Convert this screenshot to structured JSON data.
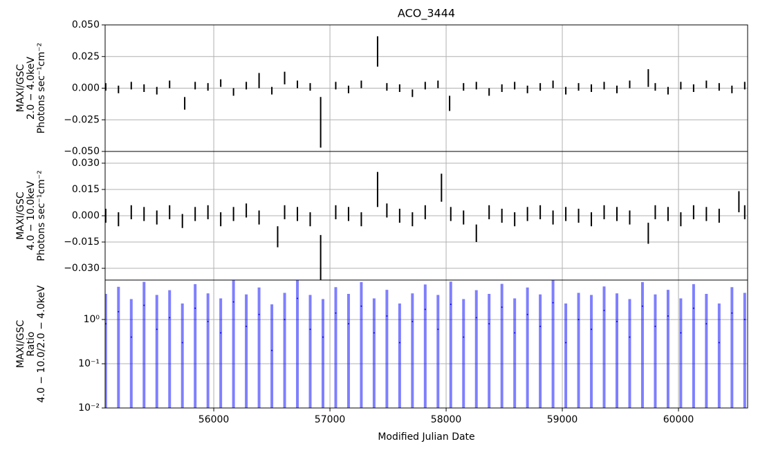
{
  "chart_data": [
    {
      "type": "errorbar",
      "title": "ACO_3444",
      "ylabel": [
        "MAXI/GSC",
        "2.0 − 4.0keV",
        "Photons sec⁻¹cm⁻²"
      ],
      "x": [
        55070,
        55180,
        55290,
        55400,
        55510,
        55620,
        55750,
        55840,
        55950,
        56060,
        56170,
        56280,
        56390,
        56500,
        56610,
        56720,
        56830,
        56920,
        57050,
        57160,
        57270,
        57410,
        57490,
        57600,
        57710,
        57820,
        57930,
        58030,
        58150,
        58260,
        58370,
        58480,
        58590,
        58700,
        58810,
        58920,
        59030,
        59140,
        59250,
        59360,
        59470,
        59580,
        59740,
        59800,
        59910,
        60020,
        60130,
        60240,
        60350,
        60460,
        60570
      ],
      "values": [
        0.001,
        -0.001,
        0.002,
        0.0,
        -0.002,
        0.003,
        -0.012,
        0.002,
        0.001,
        0.004,
        -0.003,
        0.002,
        0.006,
        -0.002,
        0.008,
        0.003,
        0.001,
        -0.027,
        0.002,
        -0.001,
        0.003,
        0.029,
        0.001,
        0.0,
        -0.004,
        0.002,
        0.003,
        -0.012,
        0.001,
        0.002,
        -0.003,
        0.0,
        0.002,
        -0.001,
        0.001,
        0.003,
        -0.002,
        0.001,
        0.0,
        0.002,
        -0.001,
        0.003,
        0.008,
        0.001,
        -0.002,
        0.002,
        0.0,
        0.003,
        0.001,
        -0.001,
        0.002
      ],
      "errors": [
        0.003,
        0.003,
        0.003,
        0.003,
        0.003,
        0.003,
        0.005,
        0.003,
        0.003,
        0.003,
        0.003,
        0.003,
        0.006,
        0.003,
        0.005,
        0.003,
        0.003,
        0.02,
        0.003,
        0.003,
        0.003,
        0.012,
        0.003,
        0.003,
        0.003,
        0.003,
        0.003,
        0.006,
        0.003,
        0.003,
        0.003,
        0.003,
        0.003,
        0.003,
        0.003,
        0.003,
        0.003,
        0.003,
        0.003,
        0.003,
        0.003,
        0.003,
        0.007,
        0.003,
        0.003,
        0.003,
        0.003,
        0.003,
        0.003,
        0.003,
        0.003
      ],
      "color": "#000000",
      "grid": true,
      "xlim": [
        55065,
        60595
      ],
      "xticks": [
        56000,
        57000,
        58000,
        59000,
        60000
      ],
      "ylim": [
        -0.05,
        0.05
      ],
      "yticks": [
        {
          "value": -0.05,
          "label": "−0.050"
        },
        {
          "value": -0.025,
          "label": "−0.025"
        },
        {
          "value": 0,
          "label": "0.000"
        },
        {
          "value": 0.025,
          "label": "0.025"
        },
        {
          "value": 0.05,
          "label": "0.050"
        }
      ]
    },
    {
      "type": "errorbar",
      "ylabel": [
        "MAXI/GSC",
        "4.0 − 10.0keV",
        "Photons sec⁻¹cm⁻²"
      ],
      "x": [
        55070,
        55180,
        55290,
        55400,
        55510,
        55620,
        55730,
        55840,
        55950,
        56060,
        56170,
        56280,
        56390,
        56550,
        56610,
        56720,
        56830,
        56920,
        57050,
        57160,
        57270,
        57410,
        57490,
        57600,
        57710,
        57820,
        57960,
        58040,
        58150,
        58260,
        58370,
        58480,
        58590,
        58700,
        58810,
        58920,
        59030,
        59140,
        59250,
        59360,
        59470,
        59580,
        59740,
        59800,
        59910,
        60020,
        60130,
        60240,
        60350,
        60520,
        60570
      ],
      "values": [
        0.0,
        -0.002,
        0.002,
        0.001,
        -0.001,
        0.002,
        -0.003,
        0.001,
        0.002,
        -0.002,
        0.001,
        0.003,
        -0.001,
        -0.012,
        0.002,
        0.001,
        -0.002,
        -0.024,
        0.002,
        0.001,
        -0.002,
        0.015,
        0.003,
        0.0,
        -0.002,
        0.002,
        0.016,
        0.001,
        -0.001,
        -0.01,
        0.002,
        0.0,
        -0.002,
        0.001,
        0.002,
        -0.001,
        0.001,
        0.0,
        -0.002,
        0.002,
        0.001,
        -0.001,
        -0.01,
        0.002,
        0.001,
        -0.002,
        0.002,
        0.001,
        0.0,
        0.008,
        0.002
      ],
      "errors": [
        0.004,
        0.004,
        0.004,
        0.004,
        0.004,
        0.004,
        0.004,
        0.004,
        0.004,
        0.004,
        0.004,
        0.004,
        0.004,
        0.006,
        0.004,
        0.004,
        0.004,
        0.013,
        0.004,
        0.004,
        0.004,
        0.01,
        0.004,
        0.004,
        0.004,
        0.004,
        0.008,
        0.004,
        0.004,
        0.005,
        0.004,
        0.004,
        0.004,
        0.004,
        0.004,
        0.004,
        0.004,
        0.004,
        0.004,
        0.004,
        0.004,
        0.004,
        0.006,
        0.004,
        0.004,
        0.004,
        0.004,
        0.004,
        0.004,
        0.006,
        0.004
      ],
      "color": "#000000",
      "grid": true,
      "xlim": [
        55065,
        60595
      ],
      "xticks": [
        56000,
        57000,
        58000,
        59000,
        60000
      ],
      "ylim": [
        -0.0367,
        0.0367
      ],
      "yticks": [
        {
          "value": -0.03,
          "label": "−0.030"
        },
        {
          "value": -0.015,
          "label": "−0.015"
        },
        {
          "value": 0,
          "label": "0.000"
        },
        {
          "value": 0.015,
          "label": "0.015"
        },
        {
          "value": 0.03,
          "label": "0.030"
        }
      ]
    },
    {
      "type": "errorbar",
      "ylabel": [
        "MAXI/GSC",
        "Ratio",
        "4.0 − 10.0/2.0 − 4.0keV"
      ],
      "xlabel": "Modified Julian Date",
      "x": [
        55070,
        55180,
        55290,
        55400,
        55510,
        55620,
        55730,
        55840,
        55950,
        56060,
        56170,
        56280,
        56390,
        56500,
        56610,
        56720,
        56830,
        56940,
        57050,
        57160,
        57270,
        57380,
        57490,
        57600,
        57710,
        57820,
        57930,
        58040,
        58150,
        58260,
        58370,
        58480,
        58590,
        58700,
        58810,
        58920,
        59030,
        59140,
        59250,
        59360,
        59470,
        59580,
        59690,
        59800,
        59910,
        60020,
        60130,
        60240,
        60350,
        60460,
        60570
      ],
      "values": [
        0.8,
        1.5,
        0.4,
        2.1,
        0.6,
        1.1,
        0.3,
        1.8,
        0.9,
        0.5,
        2.5,
        0.7,
        1.3,
        0.2,
        1.0,
        3.0,
        0.6,
        0.4,
        1.4,
        0.8,
        2.0,
        0.5,
        1.2,
        0.3,
        0.9,
        1.7,
        0.6,
        2.2,
        0.4,
        1.1,
        0.8,
        1.9,
        0.5,
        1.3,
        0.7,
        2.4,
        0.3,
        1.0,
        0.6,
        1.6,
        0.9,
        0.4,
        2.0,
        0.7,
        1.2,
        0.5,
        1.8,
        0.8,
        0.3,
        1.4,
        1.0
      ],
      "errors": [
        3,
        4,
        2.5,
        5,
        3,
        3.5,
        2,
        4.5,
        3,
        2.5,
        6,
        3,
        4,
        2,
        3,
        6,
        3,
        2.5,
        4,
        3,
        5,
        2.5,
        3.5,
        2,
        3,
        4.5,
        3,
        5,
        2.5,
        3.5,
        3,
        4.5,
        2.5,
        4,
        3,
        5.5,
        2,
        3,
        3,
        4,
        3,
        2.5,
        5,
        3,
        3.5,
        2.5,
        4.5,
        3,
        2,
        4,
        3
      ],
      "color": "#0000ff",
      "grid": true,
      "yscale": "log",
      "xlim": [
        55065,
        60595
      ],
      "xticks": [
        56000,
        57000,
        58000,
        59000,
        60000
      ],
      "ylim": [
        0.01,
        7.8
      ],
      "yticks": [
        {
          "value": 0.01,
          "label": "10⁻²"
        },
        {
          "value": 0.1,
          "label": "10⁻¹"
        },
        {
          "value": 1,
          "label": "10⁰"
        }
      ]
    }
  ]
}
